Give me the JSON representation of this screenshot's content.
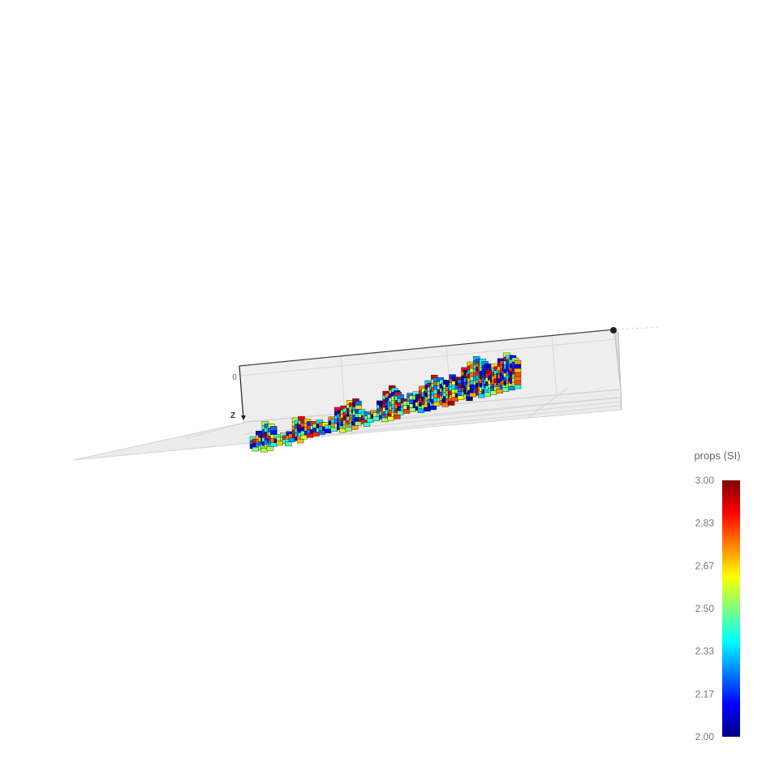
{
  "chart_data": {
    "type": "heatmap",
    "title": "",
    "axes": {
      "z_label": "Z",
      "z_tick": "0"
    },
    "colorbar": {
      "title": "props (SI)",
      "colorscale": "jet",
      "range": [
        2.0,
        3.0
      ],
      "ticks": [
        "3.00",
        "2.83",
        "2.67",
        "2.50",
        "2.33",
        "2.17",
        "2.00"
      ],
      "stops": [
        "#00007f",
        "#0000ff",
        "#007fff",
        "#00ffff",
        "#7fff7f",
        "#ffff00",
        "#ff7f00",
        "#ff0000",
        "#7f0000"
      ]
    },
    "volume": {
      "description_visible": "3D voxel block model",
      "value_range": [
        2.0,
        3.0
      ]
    }
  }
}
